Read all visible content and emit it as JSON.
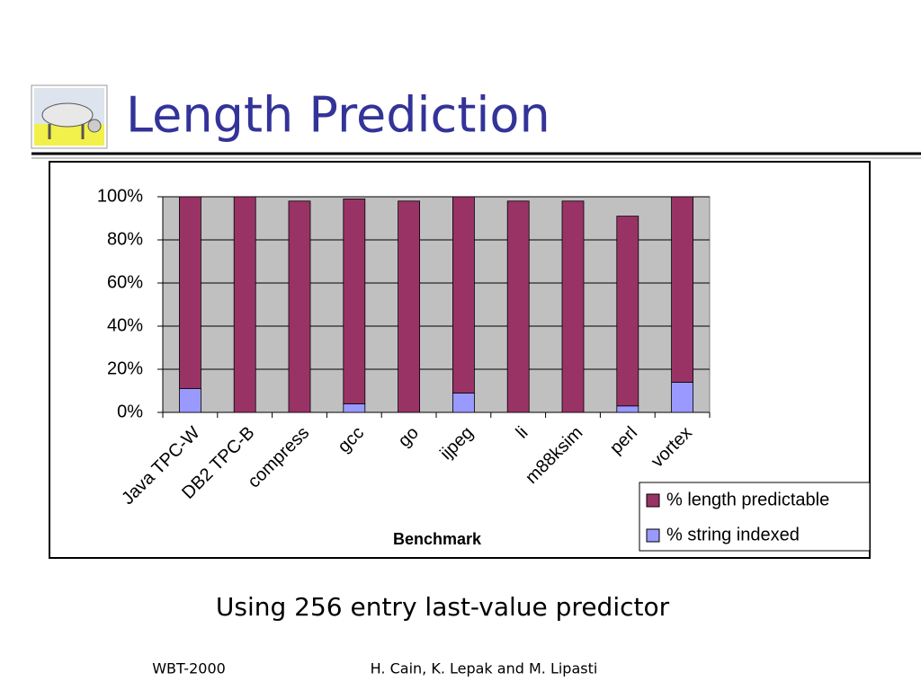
{
  "title": "Length Prediction",
  "subtitle": "Using 256 entry last-value predictor",
  "footer": {
    "left": "WBT-2000",
    "center": "H. Cain, K. Lepak and M. Lipasti"
  },
  "chart_data": {
    "type": "bar",
    "stacked": true,
    "xlabel": "Benchmark",
    "categories": [
      "Java TPC-W",
      "DB2 TPC-B",
      "compress",
      "gcc",
      "go",
      "ijpeg",
      "li",
      "m88ksim",
      "perl",
      "vortex"
    ],
    "series": [
      {
        "name": "% length predictable",
        "color": "#993366",
        "values": [
          89,
          100,
          98,
          95,
          98,
          91,
          98,
          98,
          88,
          86
        ]
      },
      {
        "name": "% string indexed",
        "color": "#9999ff",
        "values": [
          11,
          0,
          0,
          4,
          0,
          9,
          0,
          0,
          3,
          14
        ]
      }
    ],
    "ylim": [
      0,
      100
    ],
    "yticks": [
      {
        "value": 0,
        "label": "0%"
      },
      {
        "value": 20,
        "label": "20%"
      },
      {
        "value": 40,
        "label": "40%"
      },
      {
        "value": 60,
        "label": "60%"
      },
      {
        "value": 80,
        "label": "80%"
      },
      {
        "value": 100,
        "label": "100%"
      }
    ],
    "grid": true,
    "plot_background": "#c0c0c0",
    "legend": "lower right"
  }
}
